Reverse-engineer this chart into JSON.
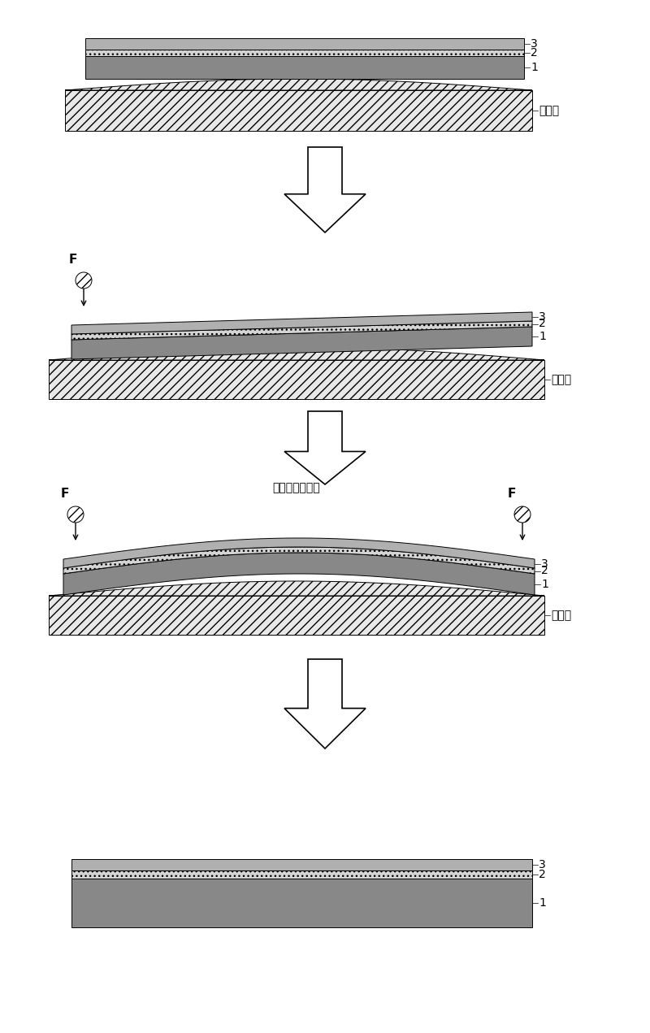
{
  "bg_color": "#ffffff",
  "label_1": "1",
  "label_2": "2",
  "label_3": "3",
  "label_bend_table": "弯曲台",
  "label_anneal": "弯曲退火后卸架",
  "layer1_color": "#909090",
  "layer2_color": "#d8d8d8",
  "layer3_color": "#c0c0c0",
  "table_color": "#e8e8e8",
  "table_hatch": "///",
  "layer1_hatch": null,
  "layer2_hatch": null,
  "layer3_hatch": null,
  "font_size": 10,
  "label_fontsize": 11,
  "force_label": "F",
  "arrow_fc": "#ffffff",
  "arrow_ec": "#000000"
}
